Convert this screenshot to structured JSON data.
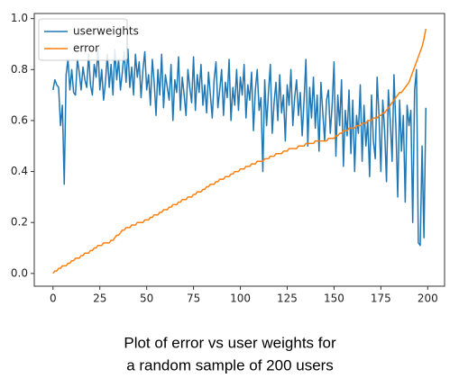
{
  "chart_data": {
    "type": "line",
    "caption": [
      "Plot of error vs user weights for",
      "a random sample of 200 users"
    ],
    "x": [
      0,
      1,
      2,
      3,
      4,
      5,
      6,
      7,
      8,
      9,
      10,
      11,
      12,
      13,
      14,
      15,
      16,
      17,
      18,
      19,
      20,
      21,
      22,
      23,
      24,
      25,
      26,
      27,
      28,
      29,
      30,
      31,
      32,
      33,
      34,
      35,
      36,
      37,
      38,
      39,
      40,
      41,
      42,
      43,
      44,
      45,
      46,
      47,
      48,
      49,
      50,
      51,
      52,
      53,
      54,
      55,
      56,
      57,
      58,
      59,
      60,
      61,
      62,
      63,
      64,
      65,
      66,
      67,
      68,
      69,
      70,
      71,
      72,
      73,
      74,
      75,
      76,
      77,
      78,
      79,
      80,
      81,
      82,
      83,
      84,
      85,
      86,
      87,
      88,
      89,
      90,
      91,
      92,
      93,
      94,
      95,
      96,
      97,
      98,
      99,
      100,
      101,
      102,
      103,
      104,
      105,
      106,
      107,
      108,
      109,
      110,
      111,
      112,
      113,
      114,
      115,
      116,
      117,
      118,
      119,
      120,
      121,
      122,
      123,
      124,
      125,
      126,
      127,
      128,
      129,
      130,
      131,
      132,
      133,
      134,
      135,
      136,
      137,
      138,
      139,
      140,
      141,
      142,
      143,
      144,
      145,
      146,
      147,
      148,
      149,
      150,
      151,
      152,
      153,
      154,
      155,
      156,
      157,
      158,
      159,
      160,
      161,
      162,
      163,
      164,
      165,
      166,
      167,
      168,
      169,
      170,
      171,
      172,
      173,
      174,
      175,
      176,
      177,
      178,
      179,
      180,
      181,
      182,
      183,
      184,
      185,
      186,
      187,
      188,
      189,
      190,
      191,
      192,
      193,
      194,
      195,
      196,
      197,
      198,
      199
    ],
    "series": [
      {
        "name": "userweights",
        "color": "#1f77b4",
        "values": [
          0.72,
          0.76,
          0.74,
          0.73,
          0.58,
          0.66,
          0.35,
          0.78,
          0.84,
          0.72,
          0.8,
          0.71,
          0.7,
          0.84,
          0.79,
          0.72,
          0.81,
          0.76,
          0.73,
          0.86,
          0.74,
          0.7,
          0.82,
          0.77,
          0.88,
          0.72,
          0.8,
          0.68,
          0.75,
          0.86,
          0.73,
          0.82,
          0.7,
          0.88,
          0.76,
          0.84,
          0.72,
          0.79,
          0.87,
          0.75,
          0.88,
          0.73,
          0.81,
          0.7,
          0.86,
          0.77,
          0.83,
          0.69,
          0.8,
          0.87,
          0.72,
          0.78,
          0.66,
          0.84,
          0.75,
          0.62,
          0.8,
          0.7,
          0.86,
          0.65,
          0.78,
          0.73,
          0.68,
          0.82,
          0.6,
          0.76,
          0.71,
          0.85,
          0.64,
          0.77,
          0.7,
          0.62,
          0.8,
          0.73,
          0.67,
          0.85,
          0.64,
          0.78,
          0.71,
          0.82,
          0.66,
          0.74,
          0.63,
          0.79,
          0.7,
          0.61,
          0.76,
          0.83,
          0.65,
          0.72,
          0.8,
          0.62,
          0.75,
          0.69,
          0.84,
          0.6,
          0.73,
          0.66,
          0.8,
          0.64,
          0.77,
          0.7,
          0.82,
          0.61,
          0.74,
          0.68,
          0.79,
          0.56,
          0.72,
          0.8,
          0.64,
          0.69,
          0.4,
          0.76,
          0.58,
          0.71,
          0.82,
          0.55,
          0.67,
          0.75,
          0.6,
          0.78,
          0.63,
          0.7,
          0.52,
          0.74,
          0.66,
          0.8,
          0.58,
          0.69,
          0.76,
          0.62,
          0.71,
          0.54,
          0.68,
          0.84,
          0.5,
          0.73,
          0.61,
          0.77,
          0.57,
          0.7,
          0.48,
          0.75,
          0.63,
          0.52,
          0.68,
          0.72,
          0.55,
          0.66,
          0.83,
          0.46,
          0.7,
          0.58,
          0.76,
          0.42,
          0.64,
          0.54,
          0.72,
          0.47,
          0.68,
          0.4,
          0.62,
          0.55,
          0.74,
          0.44,
          0.66,
          0.5,
          0.6,
          0.38,
          0.7,
          0.52,
          0.45,
          0.77,
          0.62,
          0.4,
          0.68,
          0.56,
          0.36,
          0.72,
          0.6,
          0.44,
          0.78,
          0.58,
          0.3,
          0.68,
          0.48,
          0.62,
          0.28,
          0.66,
          0.58,
          0.64,
          0.2,
          0.72,
          0.8,
          0.12,
          0.11,
          0.5,
          0.14,
          0.65
        ]
      },
      {
        "name": "error",
        "color": "#ff7f0e",
        "values": [
          0.0,
          0.01,
          0.01,
          0.02,
          0.02,
          0.03,
          0.03,
          0.03,
          0.04,
          0.04,
          0.05,
          0.05,
          0.06,
          0.06,
          0.06,
          0.07,
          0.07,
          0.08,
          0.08,
          0.08,
          0.09,
          0.09,
          0.1,
          0.1,
          0.11,
          0.11,
          0.11,
          0.12,
          0.12,
          0.12,
          0.12,
          0.13,
          0.13,
          0.14,
          0.15,
          0.15,
          0.16,
          0.17,
          0.17,
          0.18,
          0.18,
          0.18,
          0.19,
          0.19,
          0.19,
          0.2,
          0.2,
          0.2,
          0.2,
          0.21,
          0.21,
          0.21,
          0.22,
          0.22,
          0.23,
          0.23,
          0.23,
          0.24,
          0.24,
          0.25,
          0.25,
          0.25,
          0.26,
          0.26,
          0.27,
          0.27,
          0.27,
          0.28,
          0.28,
          0.29,
          0.29,
          0.29,
          0.3,
          0.3,
          0.3,
          0.31,
          0.31,
          0.32,
          0.32,
          0.32,
          0.33,
          0.33,
          0.34,
          0.34,
          0.35,
          0.35,
          0.35,
          0.36,
          0.36,
          0.37,
          0.37,
          0.37,
          0.38,
          0.38,
          0.38,
          0.39,
          0.39,
          0.4,
          0.4,
          0.4,
          0.41,
          0.41,
          0.41,
          0.42,
          0.42,
          0.42,
          0.43,
          0.43,
          0.43,
          0.44,
          0.44,
          0.44,
          0.44,
          0.45,
          0.45,
          0.45,
          0.46,
          0.46,
          0.46,
          0.47,
          0.47,
          0.47,
          0.47,
          0.48,
          0.48,
          0.48,
          0.49,
          0.49,
          0.49,
          0.49,
          0.49,
          0.5,
          0.5,
          0.5,
          0.5,
          0.51,
          0.51,
          0.51,
          0.51,
          0.51,
          0.52,
          0.52,
          0.52,
          0.52,
          0.52,
          0.52,
          0.52,
          0.53,
          0.53,
          0.53,
          0.53,
          0.54,
          0.54,
          0.55,
          0.55,
          0.56,
          0.56,
          0.56,
          0.57,
          0.57,
          0.57,
          0.57,
          0.58,
          0.58,
          0.58,
          0.59,
          0.59,
          0.59,
          0.6,
          0.6,
          0.6,
          0.61,
          0.61,
          0.61,
          0.62,
          0.62,
          0.63,
          0.63,
          0.64,
          0.65,
          0.66,
          0.67,
          0.68,
          0.69,
          0.7,
          0.71,
          0.71,
          0.72,
          0.73,
          0.74,
          0.75,
          0.77,
          0.79,
          0.81,
          0.83,
          0.85,
          0.87,
          0.89,
          0.92,
          0.96
        ]
      }
    ],
    "xlim": [
      -10,
      209
    ],
    "xticks": [
      0,
      25,
      50,
      75,
      100,
      125,
      150,
      175,
      200
    ],
    "ylim": [
      -0.05,
      1.02
    ],
    "yticks": [
      {
        "value": 0,
        "label": "0.0"
      },
      0.2,
      0.4,
      0.6,
      0.8,
      {
        "value": 1,
        "label": "1.0"
      }
    ],
    "legend": "upper left"
  }
}
